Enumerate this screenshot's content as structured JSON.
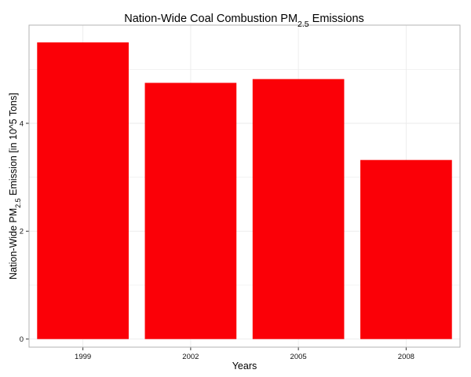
{
  "chart_data": {
    "type": "bar",
    "title": {
      "prefix": "Nation-Wide Coal Combustion PM",
      "subscript": "2.5",
      "suffix": " Emissions"
    },
    "xlabel": "Years",
    "ylabel": {
      "prefix": "Nation-Wide PM",
      "subscript": "2.5",
      "suffix": " Emission [in 10^5 Tons]"
    },
    "categories": [
      "1999",
      "2002",
      "2005",
      "2008"
    ],
    "values": [
      5.5,
      4.75,
      4.82,
      3.32
    ],
    "ylim": [
      -0.15,
      5.82
    ],
    "yticks": [
      "0",
      "2",
      "4"
    ],
    "grid": true,
    "legend": "none",
    "colors": {
      "bar": "#fb0007",
      "grid": "#ebebeb",
      "panel_border": "#b3b3b3",
      "tick": "#333333"
    }
  }
}
